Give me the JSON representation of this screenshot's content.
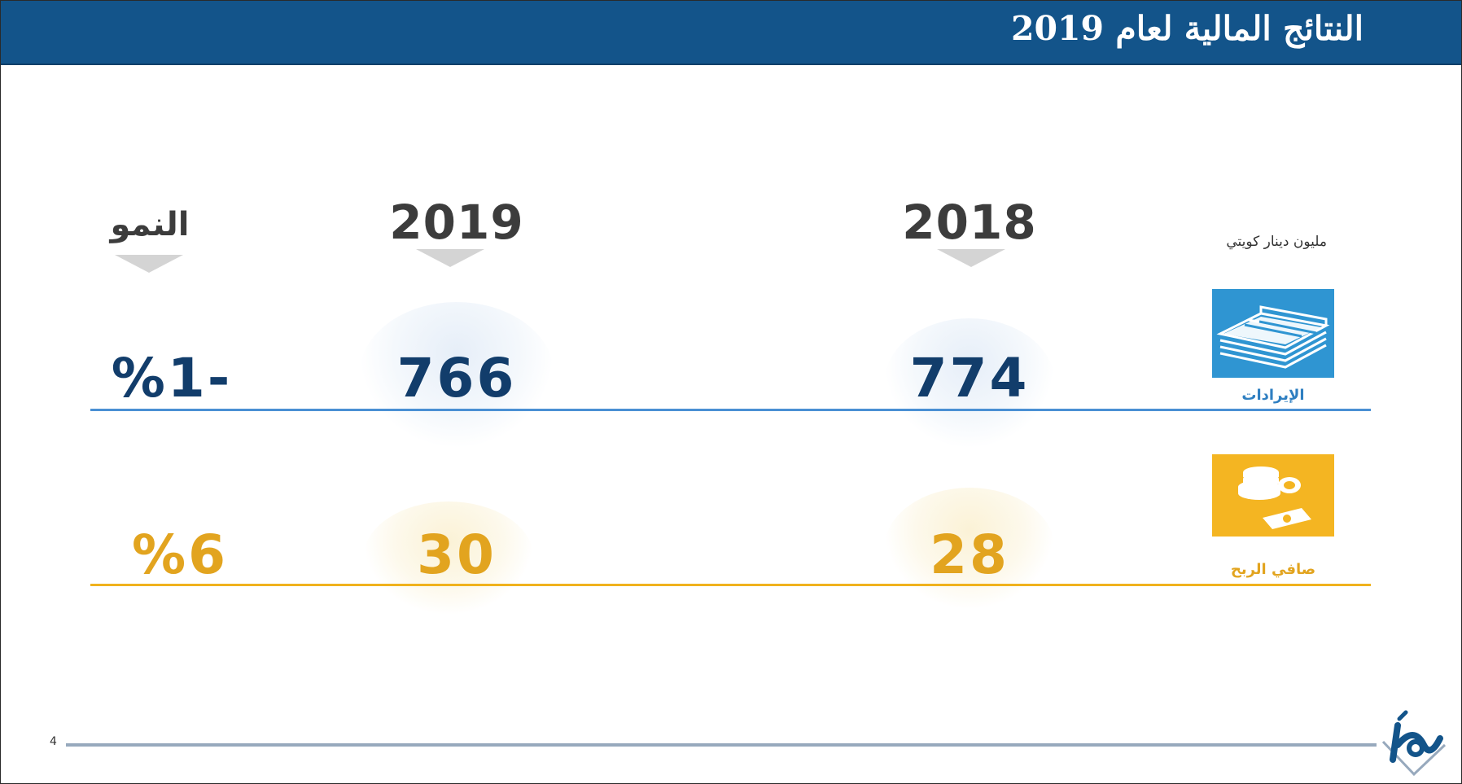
{
  "header": {
    "title": "النتائج المالية لعام 2019"
  },
  "columns": {
    "year_2018": "2018",
    "year_2019": "2019",
    "growth": "النمو",
    "unit": "مليون دينار كويتي"
  },
  "rows": [
    {
      "label": "الإيرادات",
      "icon": "money-stack-icon",
      "value_2018": "774",
      "value_2019": "766",
      "growth": "%1-",
      "color": "#123d6b"
    },
    {
      "label": "صافي الربح",
      "icon": "coins-and-cash-icon",
      "value_2018": "28",
      "value_2019": "30",
      "growth": "%6",
      "color": "#e2a41f"
    }
  ],
  "footer": {
    "page_number": "4",
    "logo": "company-logo"
  },
  "colors": {
    "header": "#13548a",
    "revenue_rule": "#4a90d4",
    "profit_rule": "#f0b21d"
  }
}
